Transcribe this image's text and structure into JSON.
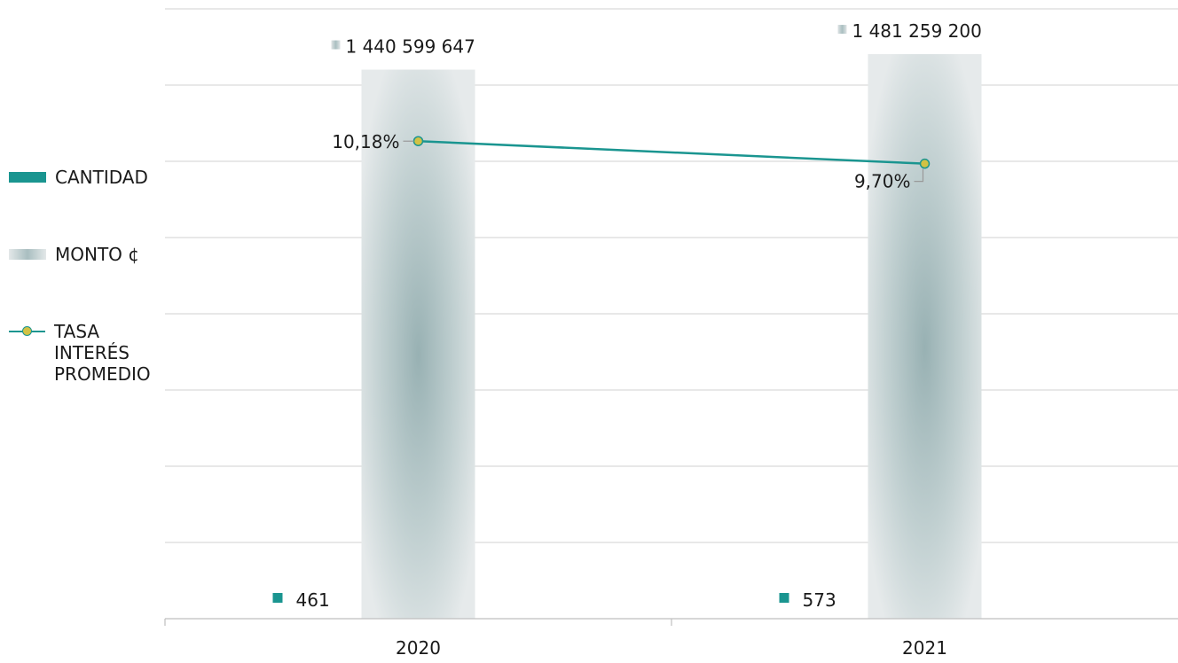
{
  "chart_data": {
    "type": "bar",
    "categories": [
      "2020",
      "2021"
    ],
    "series": [
      {
        "name": "CANTIDAD",
        "type": "bar",
        "values": [
          461,
          573
        ],
        "labels": [
          "461",
          "573"
        ],
        "color": "#1a9590"
      },
      {
        "name": "MONTO ¢",
        "type": "bar",
        "values": [
          1440599647,
          1481259200
        ],
        "labels": [
          "1 440 599 647",
          "1 481 259 200"
        ],
        "color": "#9fb5b7"
      },
      {
        "name": "TASA INTERÉS PROMEDIO",
        "type": "line",
        "values": [
          10.18,
          9.7
        ],
        "labels": [
          "10,18%",
          "9,70%"
        ],
        "color": "#1a9590",
        "marker_color": "#d2c244"
      }
    ],
    "legend_position": "left",
    "grid": true,
    "ylim_monto": [
      0,
      1600000000
    ],
    "ylim_tasa": [
      0,
      13
    ]
  },
  "legend": {
    "cantidad": "CANTIDAD",
    "monto": "MONTO ¢",
    "tasa_line1": "TASA INTERÉS",
    "tasa_line2": "PROMEDIO"
  },
  "colors": {
    "teal": "#1a9590",
    "marker_fill": "#d2c244",
    "grid": "#d9d9d9",
    "axis": "#bfbfbf"
  }
}
